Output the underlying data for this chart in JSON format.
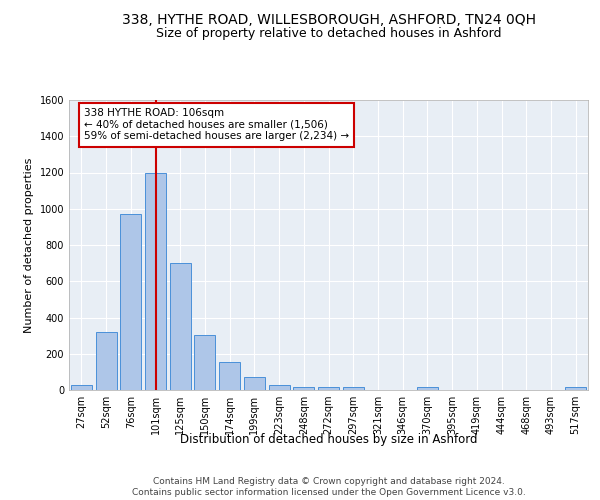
{
  "title1": "338, HYTHE ROAD, WILLESBOROUGH, ASHFORD, TN24 0QH",
  "title2": "Size of property relative to detached houses in Ashford",
  "xlabel": "Distribution of detached houses by size in Ashford",
  "ylabel": "Number of detached properties",
  "bar_labels": [
    "27sqm",
    "52sqm",
    "76sqm",
    "101sqm",
    "125sqm",
    "150sqm",
    "174sqm",
    "199sqm",
    "223sqm",
    "248sqm",
    "272sqm",
    "297sqm",
    "321sqm",
    "346sqm",
    "370sqm",
    "395sqm",
    "419sqm",
    "444sqm",
    "468sqm",
    "493sqm",
    "517sqm"
  ],
  "bar_values": [
    30,
    320,
    970,
    1200,
    700,
    305,
    155,
    70,
    30,
    18,
    15,
    15,
    0,
    0,
    15,
    0,
    0,
    0,
    0,
    0,
    15
  ],
  "bar_color": "#aec6e8",
  "bar_edge_color": "#4a90d9",
  "vline_index": 3,
  "vline_color": "#cc0000",
  "annotation_text": "338 HYTHE ROAD: 106sqm\n← 40% of detached houses are smaller (1,506)\n59% of semi-detached houses are larger (2,234) →",
  "annotation_box_color": "#ffffff",
  "annotation_box_edge": "#cc0000",
  "ylim": [
    0,
    1600
  ],
  "yticks": [
    0,
    200,
    400,
    600,
    800,
    1000,
    1200,
    1400,
    1600
  ],
  "bg_color": "#e8eef5",
  "grid_color": "#ffffff",
  "footer": "Contains HM Land Registry data © Crown copyright and database right 2024.\nContains public sector information licensed under the Open Government Licence v3.0.",
  "title1_fontsize": 10,
  "title2_fontsize": 9,
  "xlabel_fontsize": 8.5,
  "ylabel_fontsize": 8,
  "tick_fontsize": 7,
  "footer_fontsize": 6.5,
  "annot_fontsize": 7.5
}
